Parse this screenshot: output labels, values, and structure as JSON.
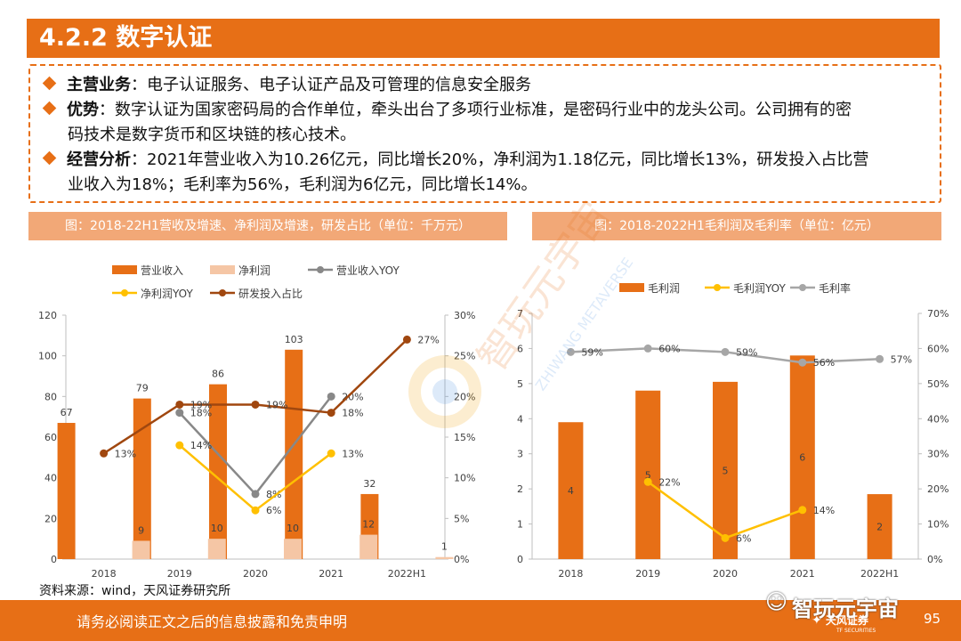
{
  "title": "4.2.2 数字认证",
  "summary": [
    {
      "key": "主营业务",
      "sep": "：",
      "lines": [
        "电子认证服务、电子认证产品及可管理的信息安全服务"
      ]
    },
    {
      "key": "优势",
      "sep": "：",
      "lines": [
        "数字认证为国家密码局的合作单位，牵头出台了多项行业标准，是密码行业中的龙头公司。公司拥有的密",
        "码技术是数字货币和区块链的核心技术。"
      ]
    },
    {
      "key": "经营分析",
      "sep": "：",
      "lines": [
        "2021年营业收入为10.26亿元，同比增长20%，净利润为1.18亿元，同比增长13%，研发投入占比营",
        "业收入为18%；毛利率为56%，毛利润为6亿元，同比增长14%。"
      ]
    }
  ],
  "left_chart_title": "图：2018-22H1营收及增速、净利润及增速，研发占比（单位：千万元）",
  "right_chart_title": "图：2018-2022H1毛利润及毛利率（单位：亿元）",
  "source": "资料来源：wind，天风证券研究所",
  "footer": "请务必阅读正文之后的信息披露和免责申明",
  "page_number": "95",
  "brand_name": "智玩元宇宙",
  "logo_text": "天风证券",
  "logo_sub": "TF SECURITIES",
  "watermark_text": "智玩元宇宙",
  "watermark_sub": "ZHIWANG METAVERSE",
  "colors": {
    "accent": "#e76f16",
    "light": "#f5c6a5",
    "gray": "#888888",
    "yellow": "#ffc000",
    "brown": "#a0470f"
  },
  "chart_data": [
    {
      "type": "bar",
      "categories": [
        "2018",
        "2019",
        "2020",
        "2021",
        "2022H1"
      ],
      "series": [
        {
          "name": "营业收入",
          "kind": "bar",
          "axis": "left",
          "values": [
            67,
            79,
            86,
            103,
            32
          ]
        },
        {
          "name": "净利润",
          "kind": "bar",
          "axis": "left",
          "values": [
            9,
            10,
            10,
            12,
            1
          ]
        },
        {
          "name": "营业收入YOY",
          "kind": "line",
          "axis": "right",
          "values": [
            null,
            18,
            8,
            20,
            null
          ],
          "labels": [
            "",
            "18%",
            "8%",
            "20%",
            ""
          ]
        },
        {
          "name": "净利润YOY",
          "kind": "line",
          "axis": "right",
          "values": [
            null,
            14,
            6,
            13,
            null
          ],
          "labels": [
            "",
            "14%",
            "6%",
            "13%",
            ""
          ]
        },
        {
          "name": "研发投入占比",
          "kind": "line",
          "axis": "right",
          "values": [
            13,
            19,
            19,
            18,
            27
          ],
          "labels": [
            "13%",
            "19%",
            "19%",
            "18%",
            "27%"
          ]
        }
      ],
      "ylim": [
        0,
        120
      ],
      "yticks": [
        "0",
        "20",
        "40",
        "60",
        "80",
        "100",
        "120"
      ],
      "y2lim": [
        0,
        30
      ],
      "y2ticks": [
        "0%",
        "5%",
        "10%",
        "15%",
        "20%",
        "25%",
        "30%"
      ]
    },
    {
      "type": "bar",
      "categories": [
        "2018",
        "2019",
        "2020",
        "2021",
        "2022H1"
      ],
      "series": [
        {
          "name": "毛利润",
          "kind": "bar",
          "axis": "left",
          "values": [
            3.9,
            4.8,
            5.05,
            5.8,
            1.85
          ],
          "labels": [
            "4",
            "5",
            "5",
            "6",
            "2"
          ]
        },
        {
          "name": "毛利润YOY",
          "kind": "line",
          "axis": "right",
          "values": [
            null,
            22,
            6,
            14,
            null
          ],
          "labels": [
            "",
            "22%",
            "6%",
            "14%",
            ""
          ]
        },
        {
          "name": "毛利率",
          "kind": "line",
          "axis": "right",
          "values": [
            59,
            60,
            59,
            56,
            57
          ],
          "labels": [
            "59%",
            "60%",
            "59%",
            "56%",
            "57%"
          ]
        }
      ],
      "ylim": [
        0,
        7
      ],
      "yticks": [
        "0",
        "1",
        "2",
        "3",
        "4",
        "5",
        "6",
        "7"
      ],
      "y2lim": [
        0,
        70
      ],
      "y2ticks": [
        "0%",
        "10%",
        "20%",
        "30%",
        "40%",
        "50%",
        "60%",
        "70%"
      ]
    }
  ]
}
